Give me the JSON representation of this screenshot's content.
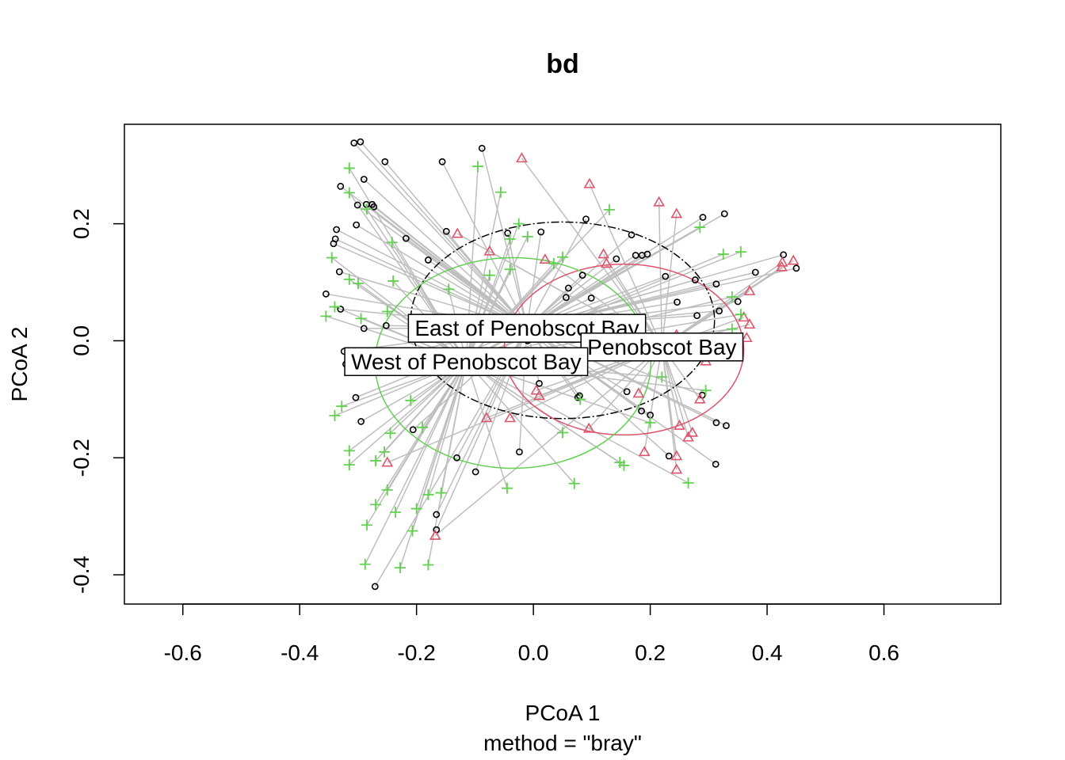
{
  "chart_data": {
    "type": "scatter",
    "title": "bd",
    "xlabel": "PCoA 1",
    "ylabel": "PCoA 2",
    "subtitle": "method = \"bray\"",
    "xlim": [
      -0.7,
      0.8
    ],
    "ylim": [
      -0.45,
      0.37
    ],
    "x_ticks": [
      "-0.6",
      "-0.4",
      "-0.2",
      "0.0",
      "0.2",
      "0.4",
      "0.6"
    ],
    "y_ticks": [
      "-0.4",
      "-0.2",
      "0.0",
      "0.2"
    ],
    "grid": false,
    "series": [
      {
        "name": "East of Penobscot Bay",
        "color": "#000000",
        "marker": "circle",
        "centroid": [
          -0.011,
          0.022
        ],
        "ellipse": {
          "cx": 0.05,
          "cy": 0.035,
          "rx": 0.26,
          "ry": 0.168
        },
        "points": [
          [
            -0.307,
            0.338
          ],
          [
            -0.296,
            0.34
          ],
          [
            -0.254,
            0.306
          ],
          [
            -0.156,
            0.306
          ],
          [
            -0.088,
            0.329
          ],
          [
            -0.33,
            0.264
          ],
          [
            -0.29,
            0.276
          ],
          [
            -0.301,
            0.232
          ],
          [
            -0.286,
            0.233
          ],
          [
            -0.276,
            0.233
          ],
          [
            -0.273,
            0.229
          ],
          [
            -0.337,
            0.19
          ],
          [
            -0.339,
            0.174
          ],
          [
            -0.342,
            0.166
          ],
          [
            -0.303,
            0.198
          ],
          [
            -0.218,
            0.175
          ],
          [
            -0.332,
            0.118
          ],
          [
            -0.355,
            0.08
          ],
          [
            -0.33,
            0.054
          ],
          [
            -0.29,
            0.021
          ],
          [
            -0.252,
            0.026
          ],
          [
            -0.324,
            -0.018
          ],
          [
            -0.321,
            -0.04
          ],
          [
            -0.304,
            -0.097
          ],
          [
            -0.295,
            -0.138
          ],
          [
            -0.206,
            -0.152
          ],
          [
            -0.131,
            -0.2
          ],
          [
            -0.099,
            -0.224
          ],
          [
            -0.024,
            -0.19
          ],
          [
            -0.166,
            -0.297
          ],
          [
            -0.166,
            -0.323
          ],
          [
            -0.271,
            -0.42
          ],
          [
            -0.18,
            0.138
          ],
          [
            -0.149,
            0.187
          ],
          [
            -0.044,
            0.184
          ],
          [
            0.013,
            0.186
          ],
          [
            0.09,
            0.208
          ],
          [
            0.168,
            0.181
          ],
          [
            0.186,
            0.146
          ],
          [
            0.175,
            0.146
          ],
          [
            0.226,
            0.11
          ],
          [
            0.142,
            0.14
          ],
          [
            0.06,
            0.09
          ],
          [
            0.056,
            0.074
          ],
          [
            0.099,
            0.073
          ],
          [
            0.084,
            0.112
          ],
          [
            0.195,
            0.148
          ],
          [
            0.246,
            0.066
          ],
          [
            0.277,
            0.104
          ],
          [
            0.29,
            0.211
          ],
          [
            0.327,
            0.217
          ],
          [
            0.313,
            0.097
          ],
          [
            0.35,
            0.067
          ],
          [
            0.38,
            0.117
          ],
          [
            0.428,
            0.147
          ],
          [
            0.45,
            0.124
          ],
          [
            0.318,
            0.051
          ],
          [
            0.28,
            0.043
          ],
          [
            0.289,
            -0.093
          ],
          [
            0.313,
            -0.14
          ],
          [
            0.33,
            -0.145
          ],
          [
            0.312,
            -0.211
          ],
          [
            0.232,
            -0.197
          ],
          [
            0.2,
            -0.127
          ],
          [
            0.185,
            -0.12
          ],
          [
            0.16,
            -0.087
          ],
          [
            0.079,
            -0.094
          ],
          [
            0.076,
            -0.097
          ],
          [
            0.01,
            -0.073
          ],
          [
            -0.01,
            0.0
          ],
          [
            0.08,
            0.009
          ]
        ]
      },
      {
        "name": "Penobscot Bay",
        "color": "#DF536B",
        "marker": "triangle",
        "centroid": [
          0.22,
          -0.01
        ],
        "ellipse": {
          "cx": 0.155,
          "cy": -0.015,
          "rx": 0.205,
          "ry": 0.146
        },
        "points": [
          [
            -0.02,
            0.312
          ],
          [
            0.096,
            0.268
          ],
          [
            0.215,
            0.237
          ],
          [
            0.245,
            0.217
          ],
          [
            -0.13,
            0.183
          ],
          [
            -0.075,
            0.153
          ],
          [
            0.02,
            0.139
          ],
          [
            0.12,
            0.148
          ],
          [
            0.125,
            0.132
          ],
          [
            0.425,
            0.126
          ],
          [
            0.426,
            0.134
          ],
          [
            0.445,
            0.137
          ],
          [
            0.37,
            0.085
          ],
          [
            0.36,
            0.04
          ],
          [
            0.37,
            0.028
          ],
          [
            0.365,
            0.005
          ],
          [
            0.295,
            -0.035
          ],
          [
            0.285,
            -0.1
          ],
          [
            0.25,
            -0.145
          ],
          [
            0.272,
            -0.157
          ],
          [
            0.265,
            -0.165
          ],
          [
            0.245,
            -0.197
          ],
          [
            0.245,
            -0.22
          ],
          [
            0.19,
            -0.19
          ],
          [
            0.18,
            -0.09
          ],
          [
            0.095,
            -0.15
          ],
          [
            0.01,
            -0.094
          ],
          [
            -0.04,
            -0.132
          ],
          [
            -0.08,
            -0.132
          ],
          [
            -0.25,
            -0.208
          ],
          [
            -0.168,
            -0.333
          ],
          [
            0.005,
            -0.085
          ],
          [
            0.115,
            0.022
          ],
          [
            0.245,
            0.01
          ]
        ]
      },
      {
        "name": "West of Penobscot Bay",
        "color": "#61D04F",
        "marker": "plus",
        "centroid": [
          -0.115,
          -0.035
        ],
        "ellipse": {
          "cx": -0.035,
          "cy": -0.038,
          "rx": 0.236,
          "ry": 0.18
        },
        "points": [
          [
            -0.315,
            0.295
          ],
          [
            -0.095,
            0.298
          ],
          [
            -0.056,
            0.254
          ],
          [
            -0.315,
            0.253
          ],
          [
            -0.285,
            0.225
          ],
          [
            0.13,
            0.224
          ],
          [
            0.285,
            0.194
          ],
          [
            -0.242,
            0.168
          ],
          [
            -0.04,
            0.174
          ],
          [
            -0.025,
            0.2
          ],
          [
            -0.01,
            0.178
          ],
          [
            0.05,
            0.143
          ],
          [
            -0.345,
            0.142
          ],
          [
            0.325,
            0.148
          ],
          [
            0.355,
            0.152
          ],
          [
            -0.315,
            0.105
          ],
          [
            -0.3,
            0.098
          ],
          [
            -0.24,
            0.102
          ],
          [
            -0.145,
            0.088
          ],
          [
            -0.075,
            0.112
          ],
          [
            -0.04,
            0.122
          ],
          [
            0.035,
            0.132
          ],
          [
            -0.355,
            0.042
          ],
          [
            -0.34,
            0.058
          ],
          [
            -0.295,
            0.038
          ],
          [
            -0.25,
            0.05
          ],
          [
            0.355,
            0.045
          ],
          [
            0.34,
            0.075
          ],
          [
            0.34,
            0.02
          ],
          [
            -0.34,
            -0.128
          ],
          [
            -0.328,
            -0.112
          ],
          [
            -0.315,
            -0.188
          ],
          [
            -0.315,
            -0.212
          ],
          [
            -0.27,
            -0.205
          ],
          [
            -0.255,
            -0.19
          ],
          [
            -0.245,
            -0.158
          ],
          [
            -0.27,
            -0.28
          ],
          [
            -0.25,
            -0.255
          ],
          [
            -0.236,
            -0.293
          ],
          [
            -0.285,
            -0.315
          ],
          [
            -0.288,
            -0.382
          ],
          [
            -0.228,
            -0.388
          ],
          [
            -0.207,
            -0.325
          ],
          [
            -0.2,
            -0.287
          ],
          [
            -0.18,
            -0.263
          ],
          [
            -0.158,
            -0.26
          ],
          [
            -0.18,
            -0.383
          ],
          [
            -0.19,
            -0.148
          ],
          [
            -0.21,
            -0.102
          ],
          [
            -0.045,
            -0.252
          ],
          [
            0.05,
            -0.157
          ],
          [
            0.07,
            -0.244
          ],
          [
            0.148,
            -0.208
          ],
          [
            0.155,
            -0.213
          ],
          [
            0.265,
            -0.243
          ],
          [
            0.295,
            -0.085
          ],
          [
            0.2,
            -0.14
          ],
          [
            0.22,
            -0.062
          ],
          [
            -0.1,
            -0.028
          ],
          [
            0.08,
            -0.1
          ]
        ]
      }
    ]
  }
}
